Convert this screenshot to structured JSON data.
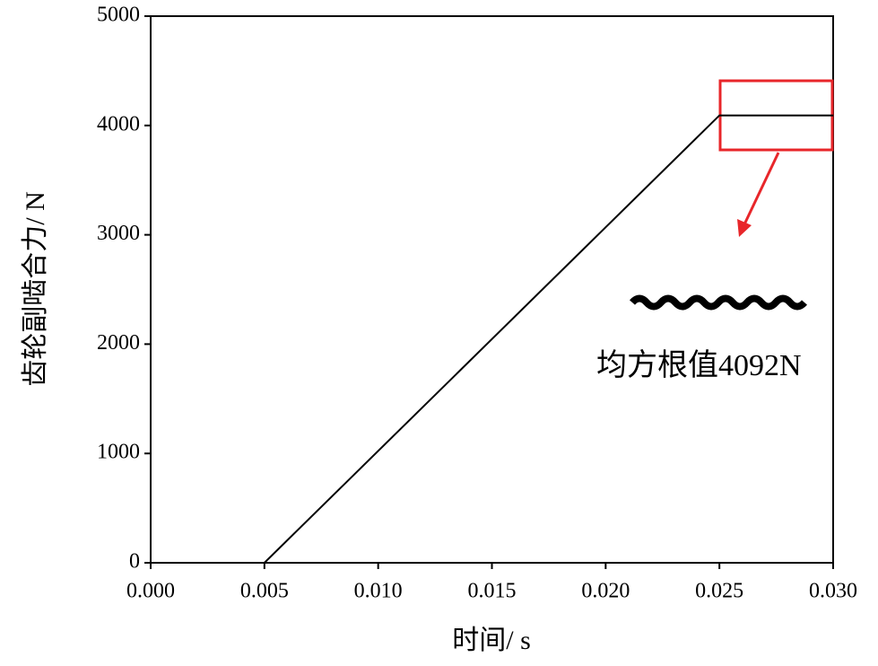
{
  "chart_data": {
    "type": "line",
    "x_label": "时间/ s",
    "y_label": "齿轮副啮合力/ N",
    "annotation": "均方根值4092N",
    "x": [
      0,
      0.005,
      0.025,
      0.03
    ],
    "series": [
      {
        "name": "齿轮副啮合力",
        "color": "#000000",
        "values": [
          0,
          0,
          4092,
          4092
        ]
      }
    ],
    "xlim": [
      0,
      0.03
    ],
    "xticks": [
      {
        "value": 0,
        "label": "0.000"
      },
      {
        "value": 0.005,
        "label": "0.005"
      },
      {
        "value": 0.01,
        "label": "0.010"
      },
      {
        "value": 0.015,
        "label": "0.015"
      },
      {
        "value": 0.02,
        "label": "0.020"
      },
      {
        "value": 0.025,
        "label": "0.025"
      },
      {
        "value": 0.03,
        "label": "0.030"
      }
    ],
    "ylim": [
      0,
      5000
    ],
    "yticks": [
      0,
      1000,
      2000,
      3000,
      4000,
      5000
    ],
    "grid": false
  }
}
